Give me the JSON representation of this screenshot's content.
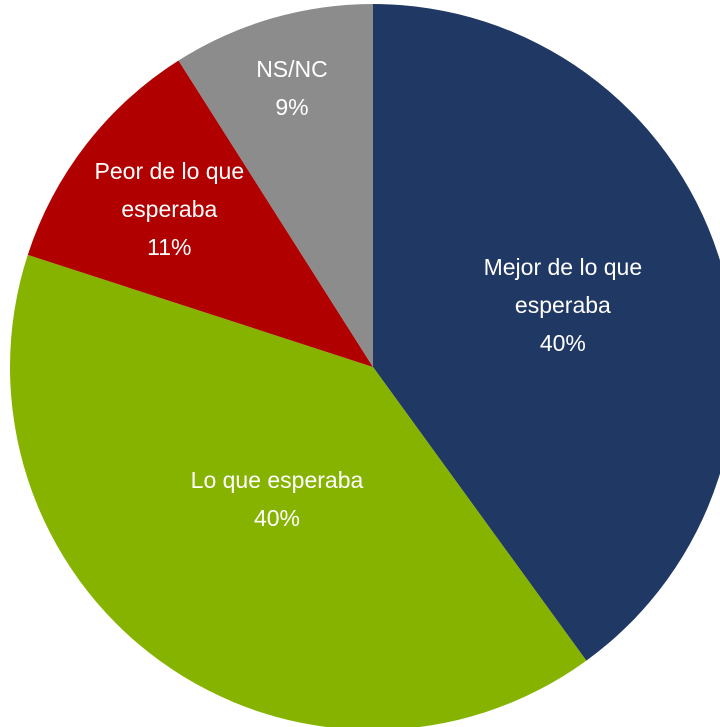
{
  "chart_data": {
    "type": "pie",
    "categories": [
      "Mejor de lo que esperaba",
      "Lo que esperaba",
      "Peor de lo que esperaba",
      "NS/NC"
    ],
    "values": [
      40,
      40,
      11,
      9
    ],
    "value_labels": [
      "40%",
      "40%",
      "11%",
      "9%"
    ],
    "colors": [
      "#203864",
      "#86b300",
      "#b00000",
      "#8c8c8c"
    ]
  }
}
